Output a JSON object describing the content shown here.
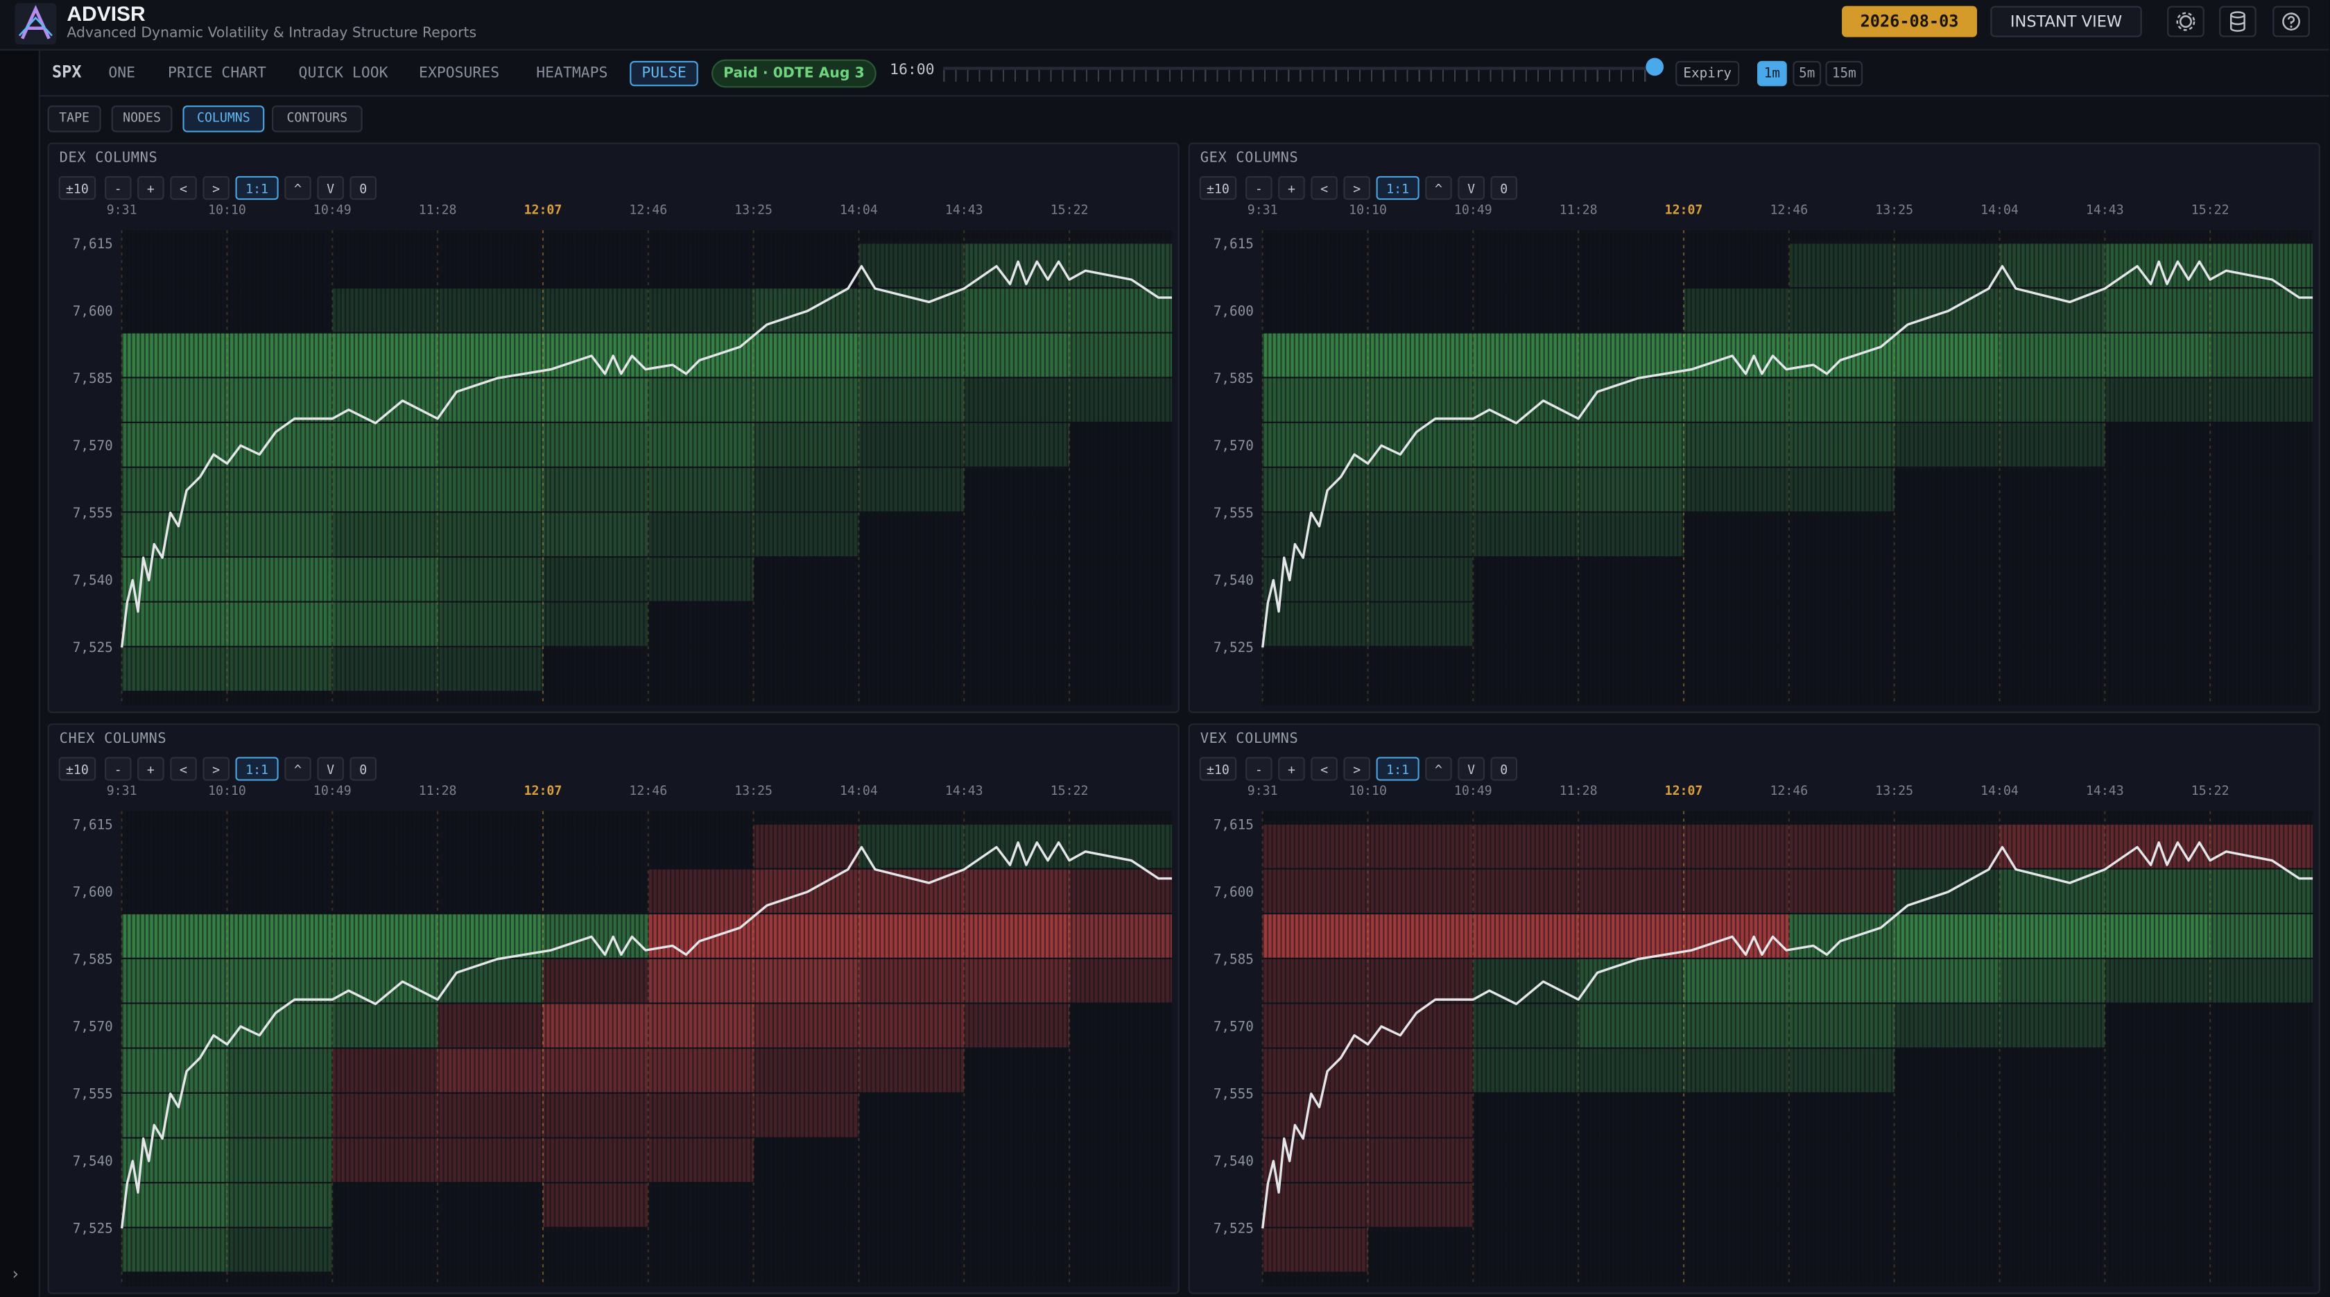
{
  "header": {
    "title": "ADVISR",
    "subtitle": "Advanced Dynamic Volatility & Intraday Structure Reports",
    "date": "2026-08-03",
    "instant_view": "INSTANT VIEW"
  },
  "nav": {
    "symbol": "SPX",
    "tabs": [
      "ONE",
      "PRICE CHART",
      "QUICK LOOK",
      "EXPOSURES",
      "HEATMAPS",
      "PULSE"
    ],
    "active_tab": "PULSE",
    "badge": "Paid · 0DTE Aug 3",
    "time": "16:00",
    "expiry": "Expiry",
    "intervals": [
      "1m",
      "5m",
      "15m"
    ],
    "active_interval": "1m"
  },
  "subtabs": {
    "items": [
      "TAPE",
      "NODES",
      "COLUMNS",
      "CONTOURS"
    ],
    "active": "COLUMNS"
  },
  "controls": {
    "items": [
      "±10",
      "-",
      "+",
      "<",
      ">",
      "1:1",
      "^",
      "V",
      "0"
    ],
    "active": "1:1"
  },
  "price": {
    "color": "#e4e6ea",
    "x": [
      "9:31",
      "9:33",
      "9:35",
      "9:37",
      "9:39",
      "9:41",
      "9:43",
      "9:46",
      "9:49",
      "9:52",
      "9:55",
      "10:00",
      "10:05",
      "10:10",
      "10:15",
      "10:22",
      "10:28",
      "10:35",
      "10:49",
      "10:55",
      "11:05",
      "11:15",
      "11:28",
      "11:35",
      "11:50",
      "12:10",
      "12:25",
      "12:30",
      "12:33",
      "12:36",
      "12:40",
      "12:45",
      "12:55",
      "13:00",
      "13:05",
      "13:20",
      "13:30",
      "13:45",
      "14:00",
      "14:05",
      "14:10",
      "14:30",
      "14:43",
      "14:55",
      "15:00",
      "15:03",
      "15:06",
      "15:10",
      "15:14",
      "15:18",
      "15:22",
      "15:28",
      "15:45",
      "15:55",
      "16:00"
    ],
    "values": [
      7525,
      7535,
      7540,
      7533,
      7545,
      7540,
      7548,
      7545,
      7555,
      7552,
      7560,
      7563,
      7568,
      7566,
      7570,
      7568,
      7573,
      7576,
      7576,
      7578,
      7575,
      7580,
      7576,
      7582,
      7585,
      7587,
      7590,
      7586,
      7590,
      7586,
      7590,
      7587,
      7588,
      7586,
      7589,
      7592,
      7597,
      7600,
      7605,
      7610,
      7605,
      7602,
      7605,
      7610,
      7606,
      7611,
      7606,
      7611,
      7607,
      7611,
      7607,
      7609,
      7607,
      7603,
      7603
    ]
  },
  "chart_data": [
    {
      "type": "heatmap",
      "title": "DEX COLUMNS",
      "positive_color": "#3f9a4f",
      "negative_color": "#c04444",
      "highlight": "12:07",
      "highlight_color": "#d9a03c",
      "xlim": [
        "9:31",
        "16:00"
      ],
      "xticks": [
        "9:31",
        "10:10",
        "10:49",
        "11:28",
        "12:07",
        "12:46",
        "13:25",
        "14:04",
        "14:43",
        "15:22"
      ],
      "ylim": [
        7512,
        7618
      ],
      "yticks": [
        {
          "value": 7615,
          "label": "7,615"
        },
        {
          "value": 7600,
          "label": "7,600"
        },
        {
          "value": 7585,
          "label": "7,585"
        },
        {
          "value": 7570,
          "label": "7,570"
        },
        {
          "value": 7555,
          "label": "7,555"
        },
        {
          "value": 7540,
          "label": "7,540"
        },
        {
          "value": 7525,
          "label": "7,525"
        }
      ],
      "x_bins": [
        "9:31",
        "10:10",
        "10:49",
        "11:28",
        "12:07",
        "12:46",
        "13:25",
        "14:04",
        "14:43",
        "15:22",
        "16:00"
      ],
      "y_bins": [
        7615,
        7605,
        7595,
        7585,
        7575,
        7565,
        7555,
        7545,
        7535,
        7525,
        7515
      ],
      "values": [
        [
          0,
          0,
          0,
          0,
          0,
          0,
          0,
          1,
          2,
          2
        ],
        [
          0,
          0,
          1,
          1,
          1,
          1,
          2,
          2,
          3,
          3
        ],
        [
          5,
          5,
          5,
          5,
          5,
          5,
          5,
          4,
          4,
          3
        ],
        [
          4,
          4,
          4,
          4,
          4,
          3,
          3,
          2,
          1,
          1
        ],
        [
          4,
          4,
          4,
          3,
          3,
          3,
          2,
          1,
          1,
          0
        ],
        [
          3,
          3,
          3,
          3,
          2,
          2,
          1,
          1,
          0,
          0
        ],
        [
          3,
          3,
          2,
          2,
          2,
          1,
          1,
          0,
          0,
          0
        ],
        [
          4,
          4,
          3,
          2,
          1,
          1,
          0,
          0,
          0,
          0
        ],
        [
          4,
          4,
          3,
          2,
          1,
          0,
          0,
          0,
          0,
          0
        ],
        [
          2,
          2,
          1,
          1,
          0,
          0,
          0,
          0,
          0,
          0
        ]
      ]
    },
    {
      "type": "heatmap",
      "title": "GEX COLUMNS",
      "positive_color": "#3f9a4f",
      "negative_color": "#c04444",
      "highlight": "12:07",
      "highlight_color": "#d9a03c",
      "xlim": [
        "9:31",
        "16:00"
      ],
      "xticks": [
        "9:31",
        "10:10",
        "10:49",
        "11:28",
        "12:07",
        "12:46",
        "13:25",
        "14:04",
        "14:43",
        "15:22"
      ],
      "ylim": [
        7512,
        7618
      ],
      "yticks": [
        {
          "value": 7615,
          "label": "7,615"
        },
        {
          "value": 7600,
          "label": "7,600"
        },
        {
          "value": 7585,
          "label": "7,585"
        },
        {
          "value": 7570,
          "label": "7,570"
        },
        {
          "value": 7555,
          "label": "7,555"
        },
        {
          "value": 7540,
          "label": "7,540"
        },
        {
          "value": 7525,
          "label": "7,525"
        }
      ],
      "x_bins": [
        "9:31",
        "10:10",
        "10:49",
        "11:28",
        "12:07",
        "12:46",
        "13:25",
        "14:04",
        "14:43",
        "15:22",
        "16:00"
      ],
      "y_bins": [
        7615,
        7605,
        7595,
        7585,
        7575,
        7565,
        7555,
        7545,
        7535,
        7525,
        7515
      ],
      "values": [
        [
          0,
          0,
          0,
          0,
          0,
          1,
          1,
          2,
          3,
          3
        ],
        [
          0,
          0,
          0,
          0,
          1,
          1,
          2,
          2,
          3,
          3
        ],
        [
          5,
          5,
          5,
          5,
          5,
          5,
          5,
          4,
          4,
          3
        ],
        [
          3,
          3,
          3,
          3,
          3,
          3,
          2,
          2,
          1,
          1
        ],
        [
          3,
          3,
          3,
          3,
          2,
          2,
          1,
          1,
          0,
          0
        ],
        [
          2,
          2,
          2,
          2,
          1,
          1,
          0,
          0,
          0,
          0
        ],
        [
          1,
          1,
          1,
          1,
          0,
          0,
          0,
          0,
          0,
          0
        ],
        [
          1,
          1,
          0,
          0,
          0,
          0,
          0,
          0,
          0,
          0
        ],
        [
          1,
          1,
          0,
          0,
          0,
          0,
          0,
          0,
          0,
          0
        ],
        [
          0,
          0,
          0,
          0,
          0,
          0,
          0,
          0,
          0,
          0
        ]
      ]
    },
    {
      "type": "heatmap",
      "title": "CHEX COLUMNS",
      "positive_color": "#3f9a4f",
      "negative_color": "#c04444",
      "highlight": "12:07",
      "highlight_color": "#d9a03c",
      "xlim": [
        "9:31",
        "16:00"
      ],
      "xticks": [
        "9:31",
        "10:10",
        "10:49",
        "11:28",
        "12:07",
        "12:46",
        "13:25",
        "14:04",
        "14:43",
        "15:22"
      ],
      "ylim": [
        7512,
        7618
      ],
      "yticks": [
        {
          "value": 7615,
          "label": "7,615"
        },
        {
          "value": 7600,
          "label": "7,600"
        },
        {
          "value": 7585,
          "label": "7,585"
        },
        {
          "value": 7570,
          "label": "7,570"
        },
        {
          "value": 7555,
          "label": "7,555"
        },
        {
          "value": 7540,
          "label": "7,540"
        },
        {
          "value": 7525,
          "label": "7,525"
        }
      ],
      "x_bins": [
        "9:31",
        "10:10",
        "10:49",
        "11:28",
        "12:07",
        "12:46",
        "13:25",
        "14:04",
        "14:43",
        "15:22",
        "16:00"
      ],
      "y_bins": [
        7615,
        7605,
        7595,
        7585,
        7575,
        7565,
        7555,
        7545,
        7535,
        7525,
        7515
      ],
      "values": [
        [
          0,
          0,
          0,
          0,
          0,
          0,
          -1,
          1,
          1,
          1
        ],
        [
          0,
          0,
          0,
          0,
          0,
          -1,
          -2,
          -2,
          -2,
          -1
        ],
        [
          4,
          4,
          4,
          4,
          3,
          -4,
          -4,
          -4,
          -4,
          -3
        ],
        [
          3,
          3,
          3,
          2,
          -1,
          -3,
          -3,
          -2,
          -2,
          -1
        ],
        [
          3,
          3,
          2,
          -1,
          -3,
          -3,
          -2,
          -2,
          -1,
          0
        ],
        [
          3,
          2,
          -1,
          -2,
          -2,
          -2,
          -1,
          -1,
          0,
          0
        ],
        [
          3,
          2,
          -1,
          -1,
          -1,
          -1,
          -1,
          0,
          0,
          0
        ],
        [
          3,
          2,
          -1,
          -1,
          -1,
          -1,
          0,
          0,
          0,
          0
        ],
        [
          3,
          2,
          0,
          0,
          -1,
          0,
          0,
          0,
          0,
          0
        ],
        [
          2,
          1,
          0,
          0,
          0,
          0,
          0,
          0,
          0,
          0
        ]
      ]
    },
    {
      "type": "heatmap",
      "title": "VEX COLUMNS",
      "positive_color": "#3f9a4f",
      "negative_color": "#c04444",
      "highlight": "12:07",
      "highlight_color": "#d9a03c",
      "xlim": [
        "9:31",
        "16:00"
      ],
      "xticks": [
        "9:31",
        "10:10",
        "10:49",
        "11:28",
        "12:07",
        "12:46",
        "13:25",
        "14:04",
        "14:43",
        "15:22"
      ],
      "ylim": [
        7512,
        7618
      ],
      "yticks": [
        {
          "value": 7615,
          "label": "7,615"
        },
        {
          "value": 7600,
          "label": "7,600"
        },
        {
          "value": 7585,
          "label": "7,585"
        },
        {
          "value": 7570,
          "label": "7,570"
        },
        {
          "value": 7555,
          "label": "7,555"
        },
        {
          "value": 7540,
          "label": "7,540"
        },
        {
          "value": 7525,
          "label": "7,525"
        }
      ],
      "x_bins": [
        "9:31",
        "10:10",
        "10:49",
        "11:28",
        "12:07",
        "12:46",
        "13:25",
        "14:04",
        "14:43",
        "15:22",
        "16:00"
      ],
      "y_bins": [
        7615,
        7605,
        7595,
        7585,
        7575,
        7565,
        7555,
        7545,
        7535,
        7525,
        7515
      ],
      "values": [
        [
          -1,
          -1,
          -1,
          -1,
          -1,
          -1,
          -1,
          -2,
          -2,
          -2
        ],
        [
          -1,
          -1,
          -1,
          -1,
          -1,
          -1,
          1,
          2,
          2,
          2
        ],
        [
          -4,
          -4,
          -4,
          -4,
          -4,
          3,
          4,
          4,
          4,
          3
        ],
        [
          -1,
          -1,
          1,
          2,
          3,
          3,
          3,
          2,
          1,
          1
        ],
        [
          -1,
          -1,
          1,
          2,
          2,
          2,
          1,
          1,
          0,
          0
        ],
        [
          -1,
          -1,
          1,
          1,
          1,
          1,
          0,
          0,
          0,
          0
        ],
        [
          -1,
          -1,
          0,
          0,
          0,
          0,
          0,
          0,
          0,
          0
        ],
        [
          -1,
          -1,
          0,
          0,
          0,
          0,
          0,
          0,
          0,
          0
        ],
        [
          -1,
          -1,
          0,
          0,
          0,
          0,
          0,
          0,
          0,
          0
        ],
        [
          -1,
          0,
          0,
          0,
          0,
          0,
          0,
          0,
          0,
          0
        ]
      ]
    }
  ]
}
